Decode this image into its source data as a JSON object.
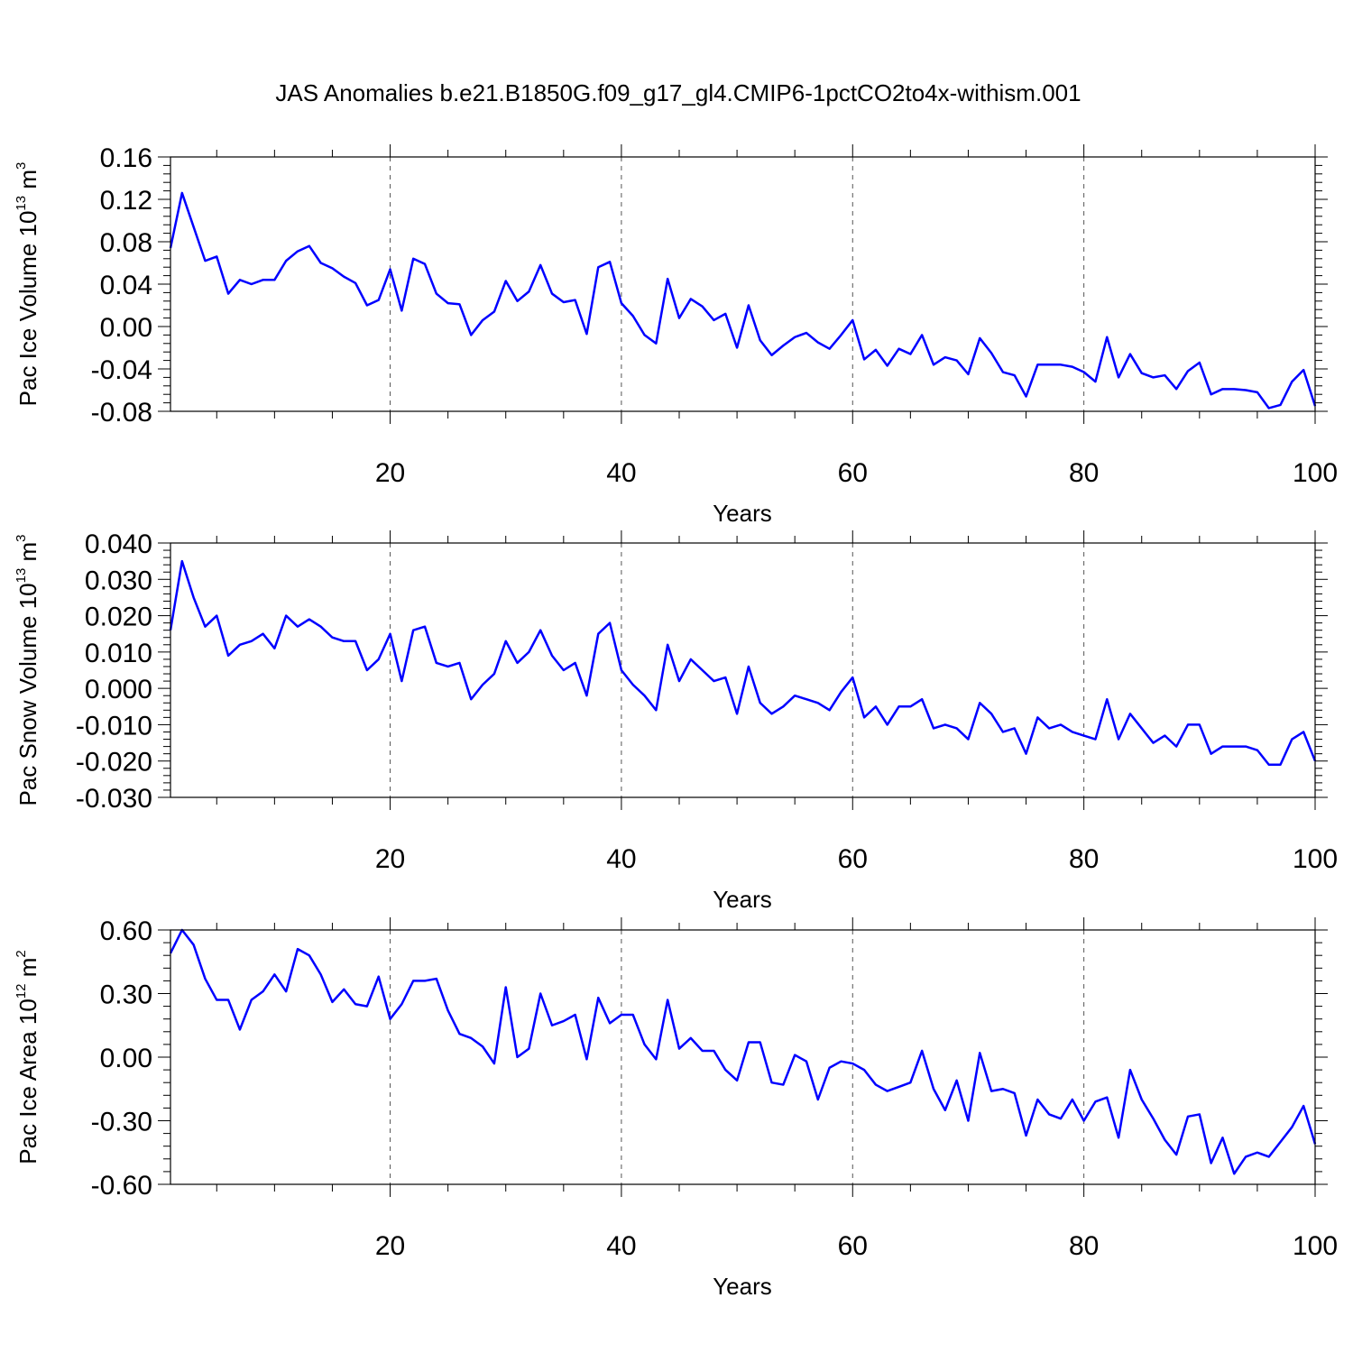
{
  "title": "JAS Anomalies b.e21.B1850G.f09_g17_gl4.CMIP6-1pctCO2to4x-withism.001",
  "chart_data": [
    {
      "type": "line",
      "title": "",
      "xlabel": "Years",
      "ylabel_main": "Pac Ice Volume 10",
      "ylabel_exp": "13",
      "ylabel_unit": " m",
      "ylabel_unit_exp": "3",
      "xlim": [
        1,
        100
      ],
      "ylim": [
        -0.08,
        0.16
      ],
      "yticks": [
        -0.08,
        -0.04,
        0.0,
        0.04,
        0.08,
        0.12,
        0.16
      ],
      "ytick_labels": [
        "-0.08",
        "-0.04",
        "0.00",
        "0.04",
        "0.08",
        "0.12",
        "0.16"
      ],
      "xticks": [
        20,
        40,
        60,
        80,
        100
      ],
      "xtick_labels": [
        "20",
        "40",
        "60",
        "80",
        "100"
      ],
      "grid": "vertical-dashed",
      "line_color": "#0000ff",
      "x_start": 1,
      "values": [
        0.074,
        0.126,
        0.094,
        0.062,
        0.066,
        0.031,
        0.044,
        0.04,
        0.044,
        0.044,
        0.062,
        0.071,
        0.076,
        0.06,
        0.055,
        0.047,
        0.041,
        0.02,
        0.025,
        0.054,
        0.015,
        0.064,
        0.059,
        0.031,
        0.022,
        0.021,
        -0.008,
        0.006,
        0.014,
        0.043,
        0.024,
        0.033,
        0.058,
        0.031,
        0.023,
        0.025,
        -0.007,
        0.056,
        0.061,
        0.022,
        0.01,
        -0.008,
        -0.016,
        0.045,
        0.008,
        0.026,
        0.019,
        0.006,
        0.012,
        -0.02,
        0.02,
        -0.013,
        -0.027,
        -0.018,
        -0.01,
        -0.006,
        -0.015,
        -0.021,
        -0.008,
        0.006,
        -0.031,
        -0.022,
        -0.037,
        -0.021,
        -0.026,
        -0.008,
        -0.036,
        -0.029,
        -0.032,
        -0.045,
        -0.011,
        -0.025,
        -0.043,
        -0.046,
        -0.066,
        -0.036,
        -0.036,
        -0.036,
        -0.038,
        -0.043,
        -0.052,
        -0.01,
        -0.048,
        -0.026,
        -0.044,
        -0.048,
        -0.046,
        -0.059,
        -0.042,
        -0.034,
        -0.064,
        -0.059,
        -0.059,
        -0.06,
        -0.062,
        -0.077,
        -0.074,
        -0.052,
        -0.041,
        -0.075
      ]
    },
    {
      "type": "line",
      "title": "",
      "xlabel": "Years",
      "ylabel_main": "Pac Snow Volume 10",
      "ylabel_exp": "13",
      "ylabel_unit": " m",
      "ylabel_unit_exp": "3",
      "xlim": [
        1,
        100
      ],
      "ylim": [
        -0.03,
        0.04
      ],
      "yticks": [
        -0.03,
        -0.02,
        -0.01,
        0.0,
        0.01,
        0.02,
        0.03,
        0.04
      ],
      "ytick_labels": [
        "-0.030",
        "-0.020",
        "-0.010",
        "0.000",
        "0.010",
        "0.020",
        "0.030",
        "0.040"
      ],
      "xticks": [
        20,
        40,
        60,
        80,
        100
      ],
      "xtick_labels": [
        "20",
        "40",
        "60",
        "80",
        "100"
      ],
      "grid": "vertical-dashed",
      "line_color": "#0000ff",
      "x_start": 1,
      "values": [
        0.016,
        0.035,
        0.025,
        0.017,
        0.02,
        0.009,
        0.012,
        0.013,
        0.015,
        0.011,
        0.02,
        0.017,
        0.019,
        0.017,
        0.014,
        0.013,
        0.013,
        0.005,
        0.008,
        0.015,
        0.002,
        0.016,
        0.017,
        0.007,
        0.006,
        0.007,
        -0.003,
        0.001,
        0.004,
        0.013,
        0.007,
        0.01,
        0.016,
        0.009,
        0.005,
        0.007,
        -0.002,
        0.015,
        0.018,
        0.005,
        0.001,
        -0.002,
        -0.006,
        0.012,
        0.002,
        0.008,
        0.005,
        0.002,
        0.003,
        -0.007,
        0.006,
        -0.004,
        -0.007,
        -0.005,
        -0.002,
        -0.003,
        -0.004,
        -0.006,
        -0.001,
        0.003,
        -0.008,
        -0.005,
        -0.01,
        -0.005,
        -0.005,
        -0.003,
        -0.011,
        -0.01,
        -0.011,
        -0.014,
        -0.004,
        -0.007,
        -0.012,
        -0.011,
        -0.018,
        -0.008,
        -0.011,
        -0.01,
        -0.012,
        -0.013,
        -0.014,
        -0.003,
        -0.014,
        -0.007,
        -0.011,
        -0.015,
        -0.013,
        -0.016,
        -0.01,
        -0.01,
        -0.018,
        -0.016,
        -0.016,
        -0.016,
        -0.017,
        -0.021,
        -0.021,
        -0.014,
        -0.012,
        -0.02
      ]
    },
    {
      "type": "line",
      "title": "",
      "xlabel": "Years",
      "ylabel_main": "Pac Ice Area 10",
      "ylabel_exp": "12",
      "ylabel_unit": " m",
      "ylabel_unit_exp": "2",
      "xlim": [
        1,
        100
      ],
      "ylim": [
        -0.6,
        0.6
      ],
      "yticks": [
        -0.6,
        -0.3,
        0.0,
        0.3,
        0.6
      ],
      "ytick_labels": [
        "-0.60",
        "-0.30",
        "0.00",
        "0.30",
        "0.60"
      ],
      "xticks": [
        20,
        40,
        60,
        80,
        100
      ],
      "xtick_labels": [
        "20",
        "40",
        "60",
        "80",
        "100"
      ],
      "grid": "vertical-dashed",
      "line_color": "#0000ff",
      "x_start": 1,
      "values": [
        0.49,
        0.6,
        0.53,
        0.37,
        0.27,
        0.27,
        0.13,
        0.27,
        0.31,
        0.39,
        0.31,
        0.51,
        0.48,
        0.39,
        0.26,
        0.32,
        0.25,
        0.24,
        0.38,
        0.18,
        0.25,
        0.36,
        0.36,
        0.37,
        0.22,
        0.11,
        0.09,
        0.05,
        -0.03,
        0.33,
        0.0,
        0.04,
        0.3,
        0.15,
        0.17,
        0.2,
        -0.01,
        0.28,
        0.16,
        0.2,
        0.2,
        0.06,
        -0.01,
        0.27,
        0.04,
        0.09,
        0.03,
        0.03,
        -0.06,
        -0.11,
        0.07,
        0.07,
        -0.12,
        -0.13,
        0.01,
        -0.02,
        -0.2,
        -0.05,
        -0.02,
        -0.03,
        -0.06,
        -0.13,
        -0.16,
        -0.14,
        -0.12,
        0.03,
        -0.15,
        -0.25,
        -0.11,
        -0.3,
        0.02,
        -0.16,
        -0.15,
        -0.17,
        -0.37,
        -0.2,
        -0.27,
        -0.29,
        -0.2,
        -0.3,
        -0.21,
        -0.19,
        -0.38,
        -0.06,
        -0.2,
        -0.29,
        -0.39,
        -0.46,
        -0.28,
        -0.27,
        -0.5,
        -0.38,
        -0.55,
        -0.47,
        -0.45,
        -0.47,
        -0.4,
        -0.33,
        -0.23,
        -0.41
      ]
    }
  ]
}
